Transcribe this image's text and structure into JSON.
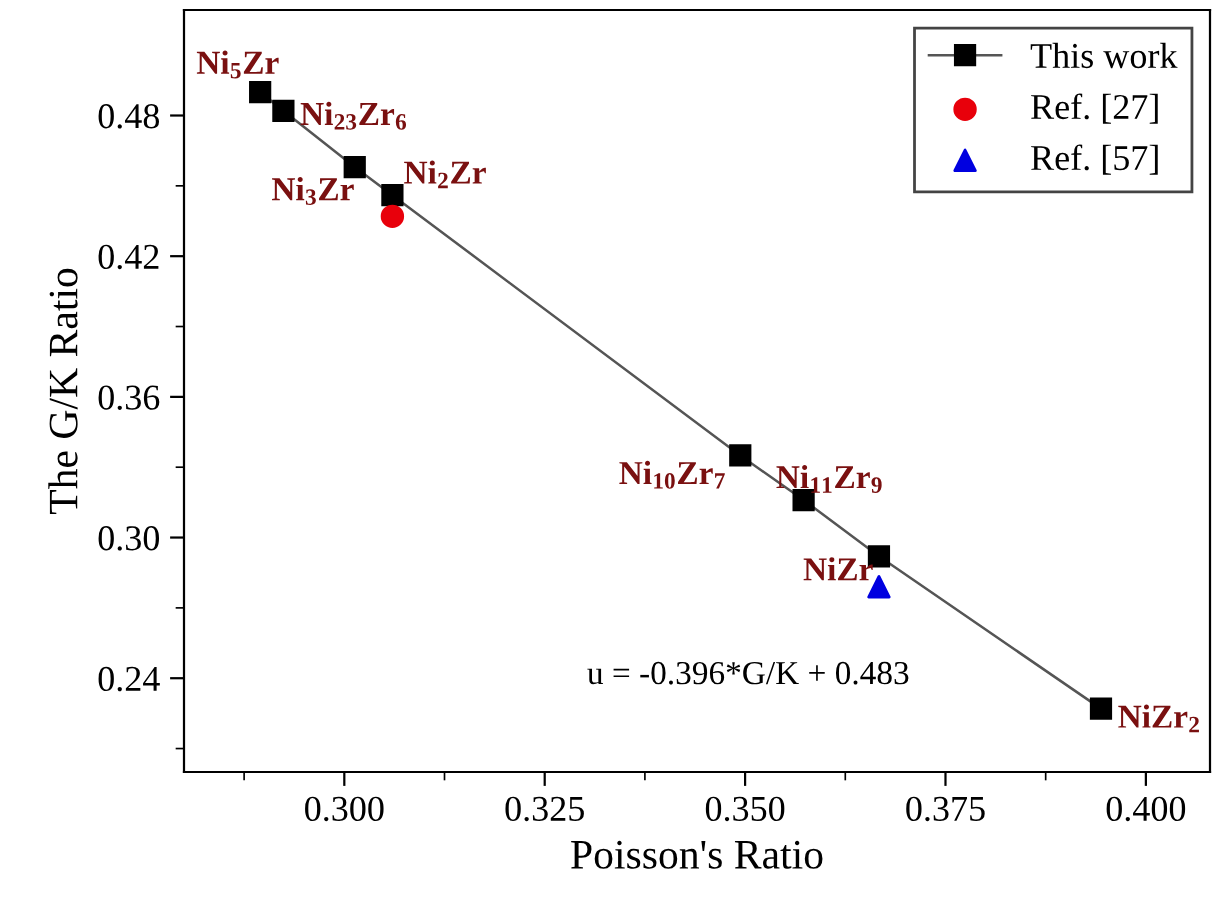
{
  "chart_data": {
    "type": "line",
    "xlabel": "Poisson's Ratio",
    "ylabel": "The G/K Ratio",
    "xlim": [
      0.28,
      0.408
    ],
    "ylim": [
      0.2,
      0.525
    ],
    "xticks": [
      {
        "value": 0.3,
        "label": "0.300"
      },
      {
        "value": 0.325,
        "label": "0.325"
      },
      {
        "value": 0.35,
        "label": "0.350"
      },
      {
        "value": 0.375,
        "label": "0.375"
      },
      {
        "value": 0.4,
        "label": "0.400"
      }
    ],
    "yticks": [
      {
        "value": 0.24,
        "label": "0.24"
      },
      {
        "value": 0.3,
        "label": "0.30"
      },
      {
        "value": 0.36,
        "label": "0.36"
      },
      {
        "value": 0.42,
        "label": "0.42"
      },
      {
        "value": 0.48,
        "label": "0.48"
      }
    ],
    "series": [
      {
        "name": "This work",
        "marker": "square",
        "color": "#000000",
        "x": [
          0.2895,
          0.2924,
          0.3013,
          0.306,
          0.3494,
          0.3573,
          0.3667,
          0.3944
        ],
        "values": [
          0.49,
          0.482,
          0.458,
          0.446,
          0.335,
          0.316,
          0.292,
          0.227
        ]
      },
      {
        "name": "Ref. [27]",
        "type": "scatter",
        "marker": "circle",
        "color": "#e8000b",
        "x": [
          0.306
        ],
        "values": [
          0.437
        ]
      },
      {
        "name": "Ref. [57]",
        "type": "scatter",
        "marker": "triangle",
        "color": "#0000e0",
        "x": [
          0.3667
        ],
        "values": [
          0.279
        ]
      }
    ],
    "annotations": [
      {
        "text": "Ni$_{5}$Zr",
        "x": 0.2895,
        "y": 0.49
      },
      {
        "text": "Ni$_{23}$Zr$_{6}$",
        "x": 0.2924,
        "y": 0.4817
      },
      {
        "text": "Ni$_{3}$Zr",
        "x": 0.3013,
        "y": 0.4584
      },
      {
        "text": "Ni$_{2}$Zr",
        "x": 0.306,
        "y": 0.4455
      },
      {
        "text": "Ni$_{10}$Zr$_{7}$",
        "x": 0.3494,
        "y": 0.335
      },
      {
        "text": "Ni$_{11}$Zr$_{9}$",
        "x": 0.3573,
        "y": 0.3156
      },
      {
        "text": "NiZr",
        "x": 0.3667,
        "y": 0.2923
      },
      {
        "text": "NiZr$_{2}$",
        "x": 0.3944,
        "y": 0.227
      },
      "u = -0.396*G/K + 0.483"
    ],
    "legend": "top right",
    "grid": false
  }
}
